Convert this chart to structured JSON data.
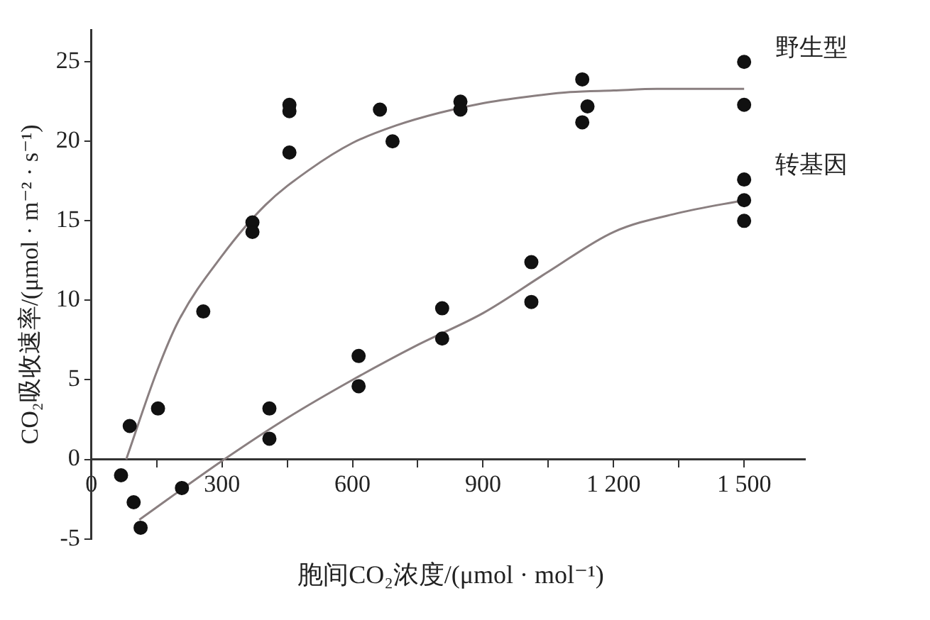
{
  "chart_data": {
    "type": "scatter",
    "xlabel": "胞间CO₂浓度/(μmol · mol⁻¹)",
    "ylabel": "CO₂吸收速率/(μmol · m⁻² · s⁻¹)",
    "xlim": [
      0,
      1640
    ],
    "ylim": [
      -5,
      27
    ],
    "xticks": [
      0,
      {
        "value": 150,
        "label": null
      },
      300,
      {
        "value": 450,
        "label": null
      },
      600,
      {
        "value": 750,
        "label": null
      },
      900,
      {
        "value": 1050,
        "label": null
      },
      {
        "value": 1200,
        "label": "1 200"
      },
      {
        "value": 1350,
        "label": null
      },
      {
        "value": 1500,
        "label": "1 500"
      }
    ],
    "yticks": [
      -5,
      0,
      5,
      10,
      15,
      20,
      25
    ],
    "grid": false,
    "legend": false,
    "series": [
      {
        "name": "野生型",
        "marker": "circle",
        "color": "#111111",
        "x": [
          68,
          88,
          153,
          257,
          370,
          370,
          455,
          455,
          455,
          663,
          692,
          848,
          848,
          1128,
          1140,
          1128,
          1500,
          1500
        ],
        "values": [
          -1.0,
          2.1,
          3.2,
          9.3,
          14.9,
          14.3,
          22.3,
          21.9,
          19.3,
          22.0,
          20.0,
          22.5,
          22.0,
          23.9,
          22.2,
          21.2,
          25.0,
          22.3
        ]
      },
      {
        "name": "转基因",
        "marker": "circle",
        "color": "#111111",
        "x": [
          97,
          113,
          208,
          409,
          409,
          614,
          614,
          806,
          806,
          1011,
          1011,
          1500,
          1500,
          1500
        ],
        "values": [
          -2.7,
          -4.3,
          -1.8,
          3.2,
          1.3,
          6.5,
          4.6,
          9.5,
          7.6,
          12.4,
          9.9,
          17.6,
          16.3,
          15.0
        ]
      },
      {
        "type": "line",
        "marker": "none",
        "color": "#8a7f80",
        "x": [
          80,
          150,
          200,
          300,
          400,
          500,
          600,
          700,
          800,
          900,
          1000,
          1100,
          1200,
          1300,
          1500
        ],
        "values": [
          0,
          5.5,
          8.7,
          12.8,
          16,
          18.2,
          19.9,
          21,
          21.8,
          22.4,
          22.8,
          23.1,
          23.2,
          23.3,
          23.3
        ]
      },
      {
        "type": "line",
        "marker": "none",
        "color": "#8a7f80",
        "x": [
          110,
          300,
          450,
          600,
          750,
          900,
          1050,
          1200,
          1350,
          1500
        ],
        "values": [
          -3.8,
          -0.1,
          2.6,
          5,
          7.2,
          9.2,
          11.8,
          14.3,
          15.5,
          16.3
        ]
      }
    ]
  }
}
